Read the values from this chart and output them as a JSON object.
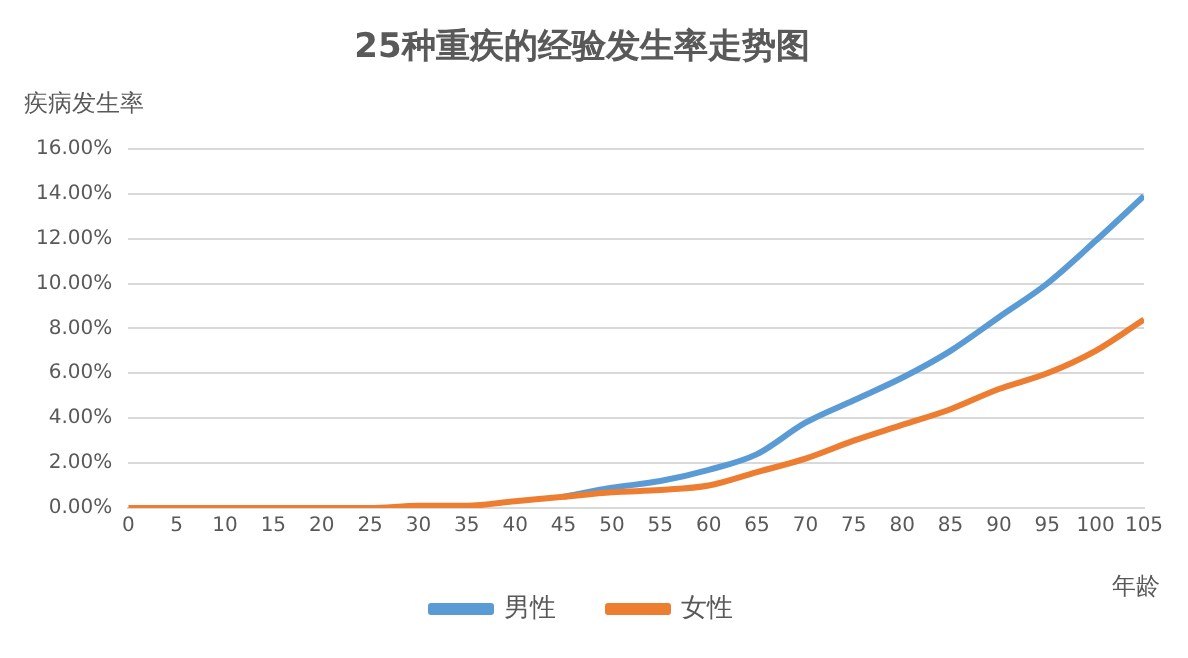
{
  "chart_data": {
    "type": "line",
    "title": "25种重疾的经验发生率走势图",
    "xlabel": "年龄",
    "ylabel": "疾病发生率",
    "x": [
      0,
      5,
      10,
      15,
      20,
      25,
      30,
      35,
      40,
      45,
      50,
      55,
      60,
      65,
      70,
      75,
      80,
      85,
      90,
      95,
      100,
      105
    ],
    "series": [
      {
        "name": "男性",
        "color": "#5b9bd5",
        "values": [
          null,
          null,
          null,
          null,
          null,
          null,
          null,
          null,
          null,
          0.5,
          0.9,
          1.2,
          1.7,
          2.4,
          3.8,
          4.8,
          5.8,
          7.0,
          8.5,
          10.0,
          11.9,
          13.9
        ]
      },
      {
        "name": "女性",
        "color": "#ed7d31",
        "values": [
          0,
          0,
          0,
          0,
          0,
          0,
          0.1,
          0.1,
          0.3,
          0.5,
          0.7,
          0.8,
          1.0,
          1.6,
          2.2,
          3.0,
          3.7,
          4.4,
          5.3,
          6.0,
          7.0,
          8.4
        ]
      }
    ],
    "xlim": [
      0,
      105
    ],
    "xticks": [
      0,
      5,
      10,
      15,
      20,
      25,
      30,
      35,
      40,
      45,
      50,
      55,
      60,
      65,
      70,
      75,
      80,
      85,
      90,
      95,
      100,
      105
    ],
    "ylim": [
      0,
      16
    ],
    "yticks": [
      {
        "value": 0,
        "label": "0.00%"
      },
      {
        "value": 2,
        "label": "2.00%"
      },
      {
        "value": 4,
        "label": "4.00%"
      },
      {
        "value": 6,
        "label": "6.00%"
      },
      {
        "value": 8,
        "label": "8.00%"
      },
      {
        "value": 10,
        "label": "10.00%"
      },
      {
        "value": 12,
        "label": "12.00%"
      },
      {
        "value": 14,
        "label": "14.00%"
      },
      {
        "value": 16,
        "label": "16.00%"
      }
    ],
    "grid": "y",
    "legend": "bottom",
    "marker": "none",
    "line_style": "solid"
  }
}
